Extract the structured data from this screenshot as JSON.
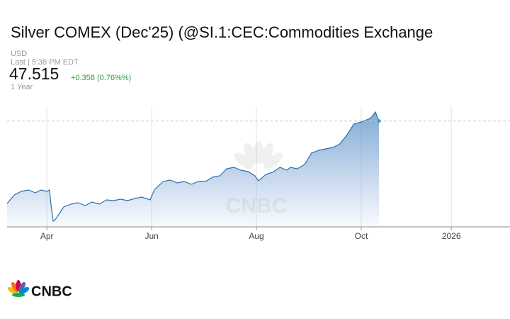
{
  "chart_data": {
    "type": "area",
    "title": "Silver COMEX (Dec'25) (@SI.1:CEC:Commodities Exchange",
    "currency": "USD",
    "last_time": "Last | 5:38 PM EDT",
    "last_price": "47.515",
    "change": "+0.358 (0.76%%)",
    "range": "1 Year",
    "brand": "CNBC",
    "x": [
      3.24,
      3.38,
      3.51,
      3.65,
      3.78,
      3.89,
      4.0,
      4.05,
      4.08,
      4.12,
      4.16,
      4.32,
      4.46,
      4.59,
      4.73,
      4.86,
      5.0,
      5.14,
      5.27,
      5.41,
      5.54,
      5.68,
      5.81,
      5.97,
      6.05,
      6.22,
      6.35,
      6.49,
      6.62,
      6.76,
      6.89,
      7.03,
      7.16,
      7.3,
      7.43,
      7.57,
      7.7,
      7.84,
      7.97,
      8.04,
      8.18,
      8.31,
      8.45,
      8.58,
      8.65,
      8.78,
      8.92,
      9.05,
      9.19,
      9.32,
      9.46,
      9.59,
      9.73,
      9.86,
      10.0,
      10.14,
      10.2,
      10.27,
      10.34
    ],
    "series": [
      {
        "color": "#2f6fb0",
        "values": [
          34.0,
          35.39,
          35.97,
          36.21,
          35.74,
          36.21,
          35.97,
          36.21,
          33.65,
          31.09,
          31.32,
          33.42,
          33.88,
          34.11,
          33.65,
          34.23,
          33.88,
          34.58,
          34.46,
          34.69,
          34.46,
          34.81,
          35.04,
          34.58,
          36.21,
          37.6,
          37.83,
          37.37,
          37.6,
          37.14,
          37.6,
          37.6,
          38.3,
          38.53,
          39.69,
          39.93,
          39.46,
          39.23,
          38.53,
          37.72,
          38.76,
          39.11,
          39.93,
          39.46,
          39.93,
          39.69,
          40.39,
          42.25,
          42.72,
          42.95,
          43.18,
          43.76,
          45.28,
          47.02,
          47.37,
          47.83,
          48.18,
          49.0,
          47.515
        ]
      }
    ],
    "xlim": [
      3.24,
      12.84
    ],
    "ylim": [
      30.16,
      49.93
    ],
    "xticks": [
      {
        "value": 4,
        "label": "Apr"
      },
      {
        "value": 6,
        "label": "Jun"
      },
      {
        "value": 8,
        "label": "Aug"
      },
      {
        "value": 10,
        "label": "Oct"
      },
      {
        "value": 11.72,
        "label": "2026"
      }
    ],
    "grid": true
  }
}
